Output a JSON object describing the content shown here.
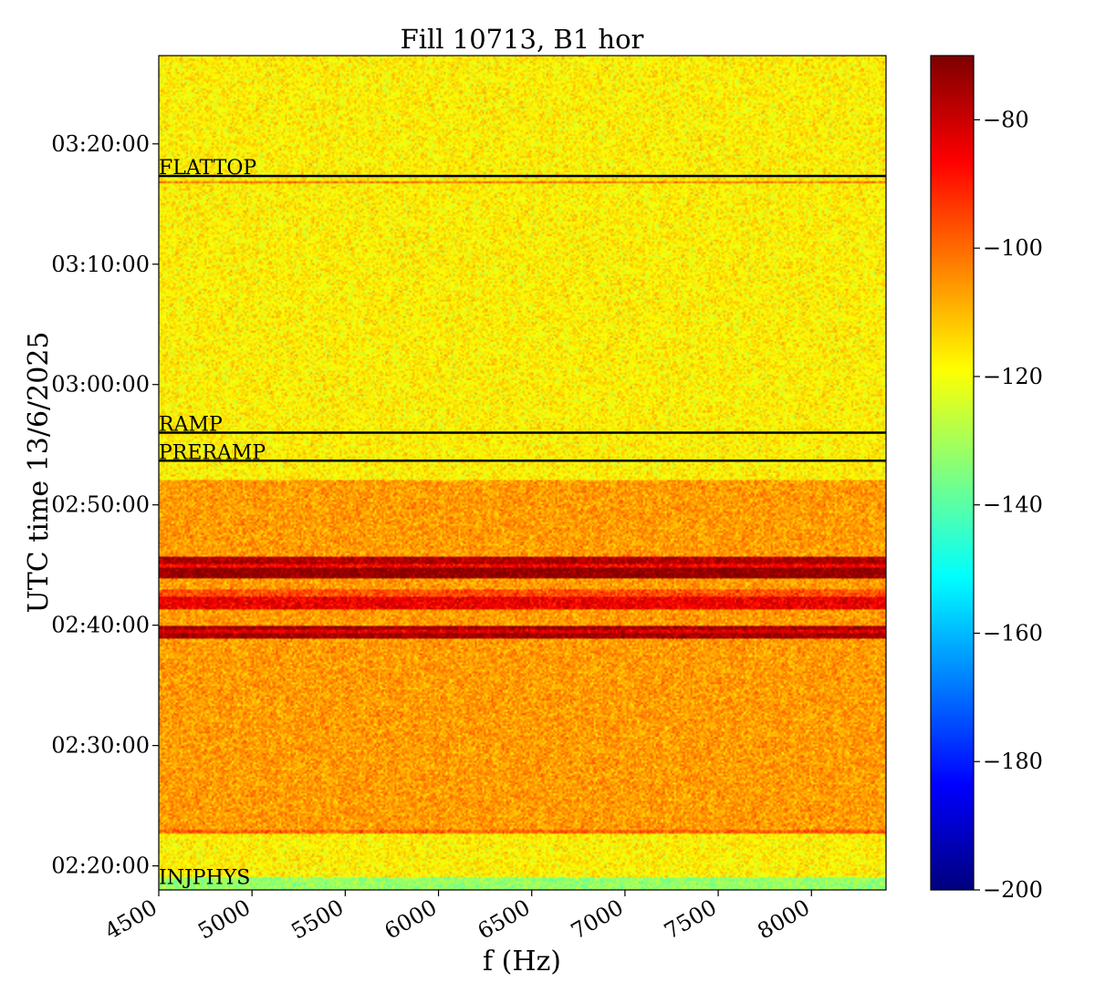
{
  "chart_data": {
    "type": "heatmap",
    "title": "Fill 10713, B1 hor",
    "xlabel": "f (Hz)",
    "ylabel": "UTC time 13/6/2025",
    "x_ticks": [
      4500,
      5000,
      5500,
      6000,
      6500,
      7000,
      7500,
      8000
    ],
    "x_range": [
      4500,
      8400
    ],
    "y_range": [
      "02:18:00",
      "03:27:20"
    ],
    "y_ticks": [
      "02:20:00",
      "02:30:00",
      "02:40:00",
      "02:50:00",
      "03:00:00",
      "03:10:00",
      "03:20:00"
    ],
    "colormap": "jet",
    "colorbar": {
      "range": [
        -200,
        -70
      ],
      "ticks": [
        -80,
        -100,
        -120,
        -140,
        -160,
        -180,
        -200
      ],
      "tick_labels": [
        "−80",
        "−100",
        "−120",
        "−140",
        "−160",
        "−180",
        "−200"
      ]
    },
    "markers": [
      {
        "label": "FLATTOP",
        "time": "03:17:20"
      },
      {
        "label": "RAMP",
        "time": "02:56:00"
      },
      {
        "label": "PRERAMP",
        "time": "02:53:40"
      },
      {
        "label": "INJPHYS",
        "time": "02:18:20"
      }
    ],
    "background_levels_dB": [
      {
        "from": "02:18:00",
        "to": "02:19:00",
        "level": -132
      },
      {
        "from": "02:19:00",
        "to": "02:23:00",
        "level": -117
      },
      {
        "from": "02:23:00",
        "to": "02:52:00",
        "level": -106
      },
      {
        "from": "02:52:00",
        "to": "03:27:20",
        "level": -117
      }
    ],
    "bands_dB": [
      {
        "from": "02:38:50",
        "to": "02:39:20",
        "level": -74
      },
      {
        "from": "02:39:20",
        "to": "02:39:40",
        "level": -82
      },
      {
        "from": "02:39:40",
        "to": "02:40:00",
        "level": -74
      },
      {
        "from": "02:41:20",
        "to": "02:42:20",
        "level": -84
      },
      {
        "from": "02:42:20",
        "to": "02:43:00",
        "level": -96
      },
      {
        "from": "02:43:50",
        "to": "02:44:50",
        "level": -72
      },
      {
        "from": "02:44:50",
        "to": "02:45:10",
        "level": -86
      },
      {
        "from": "02:45:10",
        "to": "02:45:40",
        "level": -76
      },
      {
        "from": "02:22:40",
        "to": "02:23:00",
        "level": -98
      },
      {
        "from": "03:16:40",
        "to": "03:16:50",
        "level": -100
      }
    ]
  }
}
